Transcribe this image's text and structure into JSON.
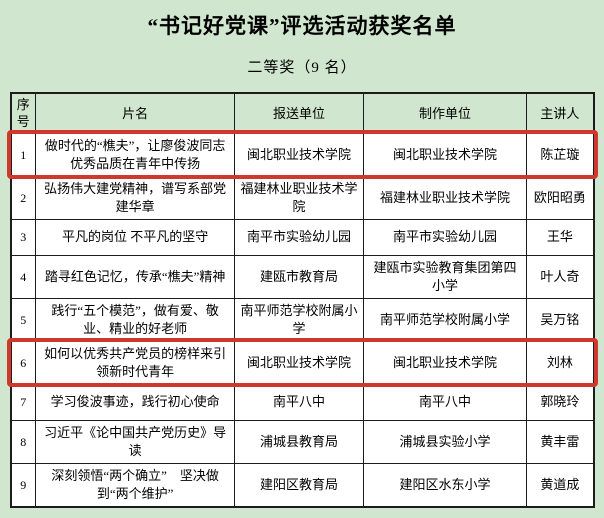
{
  "page": {
    "title": "“书记好党课”评选活动获奖名单",
    "subtitle": "二等奖（9 名）"
  },
  "colors": {
    "background": "#d0e6ce",
    "table_border": "#1c1c1c",
    "row_background": "#ffffff",
    "highlight_border": "#cf382d"
  },
  "table": {
    "headers": [
      "序号",
      "片名",
      "报送单位",
      "制作单位",
      "主讲人"
    ],
    "rows": [
      {
        "no": "1",
        "title": "做时代的“樵夫”，让廖俊波同志优秀品质在青年中传扬",
        "submit_unit": "闽北职业技术学院",
        "producer_unit": "闽北职业技术学院",
        "speaker": "陈芷璇",
        "highlight": true
      },
      {
        "no": "2",
        "title": "弘扬伟大建党精神，谱写系部党建华章",
        "submit_unit": "福建林业职业技术学院",
        "producer_unit": "福建林业职业技术学院",
        "speaker": "欧阳昭勇",
        "highlight": false
      },
      {
        "no": "3",
        "title": "平凡的岗位 不平凡的坚守",
        "submit_unit": "南平市实验幼儿园",
        "producer_unit": "南平市实验幼儿园",
        "speaker": "王华",
        "highlight": false
      },
      {
        "no": "4",
        "title": "踏寻红色记忆，传承“樵夫”精神",
        "submit_unit": "建瓯市教育局",
        "producer_unit": "建瓯市实验教育集团第四小学",
        "speaker": "叶人奇",
        "highlight": false
      },
      {
        "no": "5",
        "title": "践行“五个模范”，做有爱、敬业、精业的好老师",
        "submit_unit": "南平师范学校附属小学",
        "producer_unit": "南平师范学校附属小学",
        "speaker": "吴万铭",
        "highlight": false
      },
      {
        "no": "6",
        "title": "如何以优秀共产党员的榜样来引领新时代青年",
        "submit_unit": "闽北职业技术学院",
        "producer_unit": "闽北职业技术学院",
        "speaker": "刘林",
        "highlight": true
      },
      {
        "no": "7",
        "title": "学习俊波事迹，践行初心使命",
        "submit_unit": "南平八中",
        "producer_unit": "南平八中",
        "speaker": "郭晓玲",
        "highlight": false
      },
      {
        "no": "8",
        "title": "习近平《论中国共产党历史》导读",
        "submit_unit": "浦城县教育局",
        "producer_unit": "浦城县实验小学",
        "speaker": "黄丰雷",
        "highlight": false
      },
      {
        "no": "9",
        "title": "深刻领悟“两个确立”　坚决做到“两个维护”",
        "submit_unit": "建阳区教育局",
        "producer_unit": "建阳区水东小学",
        "speaker": "黄道成",
        "highlight": false
      }
    ]
  }
}
